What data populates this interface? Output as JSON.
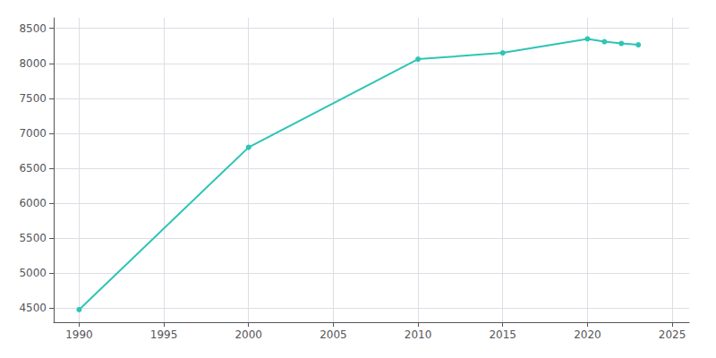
{
  "chart_data": {
    "type": "line",
    "x": [
      1990,
      2000,
      2010,
      2015,
      2020,
      2021,
      2022,
      2023
    ],
    "values": [
      4480,
      6800,
      8060,
      8150,
      8350,
      8310,
      8285,
      8265
    ],
    "color": "#2ec4b6",
    "marker": "circle",
    "xlim": [
      1988.5,
      2026
    ],
    "xticks": [
      1990,
      1995,
      2000,
      2005,
      2010,
      2015,
      2020,
      2025
    ],
    "ylim": [
      4300,
      8650
    ],
    "yticks": [
      4500,
      5000,
      5500,
      6000,
      6500,
      7000,
      7500,
      8000,
      8500
    ],
    "grid": true
  }
}
